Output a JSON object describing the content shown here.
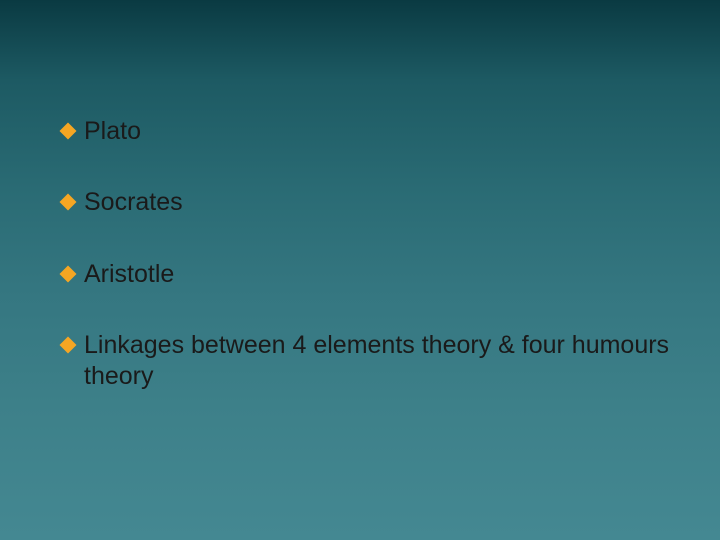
{
  "slide": {
    "background_gradient": {
      "top": "#0a3a42",
      "bottom": "#448892"
    },
    "bullet_color": "#f5a623",
    "text_color": "#1a1a1a",
    "font_size": 25,
    "font_family": "Verdana",
    "bullets": [
      {
        "text": "Plato"
      },
      {
        "text": "Socrates"
      },
      {
        "text": "Aristotle"
      },
      {
        "text": "Linkages between 4 elements theory & four humours theory"
      }
    ]
  }
}
